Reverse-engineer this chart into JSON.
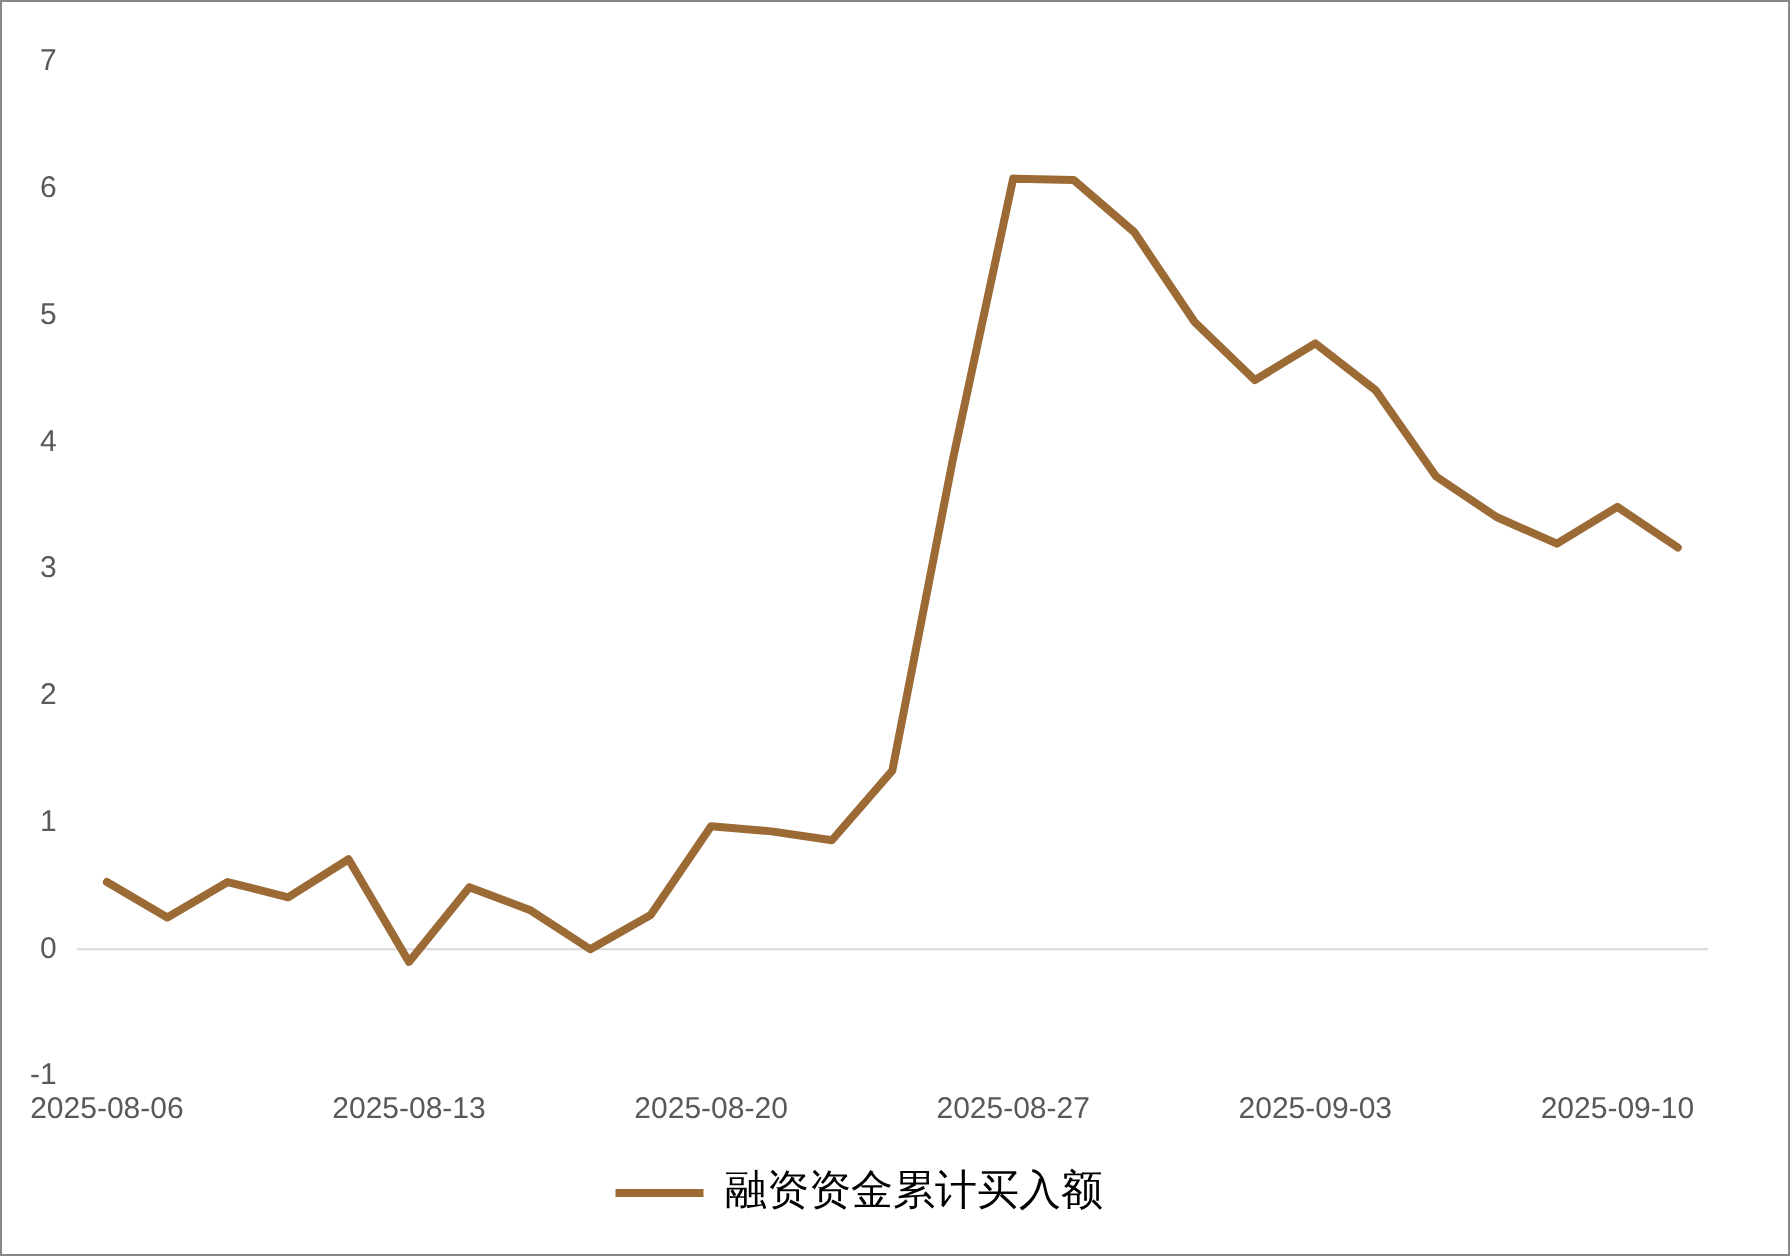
{
  "chart_data": {
    "type": "line",
    "categories": [
      "2025-08-06",
      null,
      null,
      null,
      null,
      "2025-08-13",
      null,
      null,
      null,
      null,
      "2025-08-20",
      null,
      null,
      null,
      null,
      "2025-08-27",
      null,
      null,
      null,
      null,
      "2025-09-03",
      null,
      null,
      null,
      null,
      "2025-09-10",
      null
    ],
    "series": [
      {
        "name": "融资资金累计买入额",
        "color": "#9c6a35",
        "values": [
          0.53,
          0.25,
          0.53,
          0.41,
          0.71,
          -0.1,
          0.49,
          0.31,
          0,
          0.27,
          0.97,
          0.93,
          0.86,
          1.41,
          3.86,
          6.08,
          6.07,
          5.66,
          4.95,
          4.49,
          4.78,
          4.41,
          3.73,
          3.41,
          3.2,
          3.49,
          3.17
        ]
      }
    ],
    "ylim": [
      -1,
      7
    ],
    "yticks": [
      -1,
      0,
      1,
      2,
      3,
      4,
      5,
      6,
      7
    ],
    "ref_lines": [
      {
        "axis": "y",
        "value": 0,
        "color": "#d9d9d9"
      }
    ],
    "grid": false,
    "legend": "bottom",
    "marker": "none",
    "line_style": "solid"
  }
}
